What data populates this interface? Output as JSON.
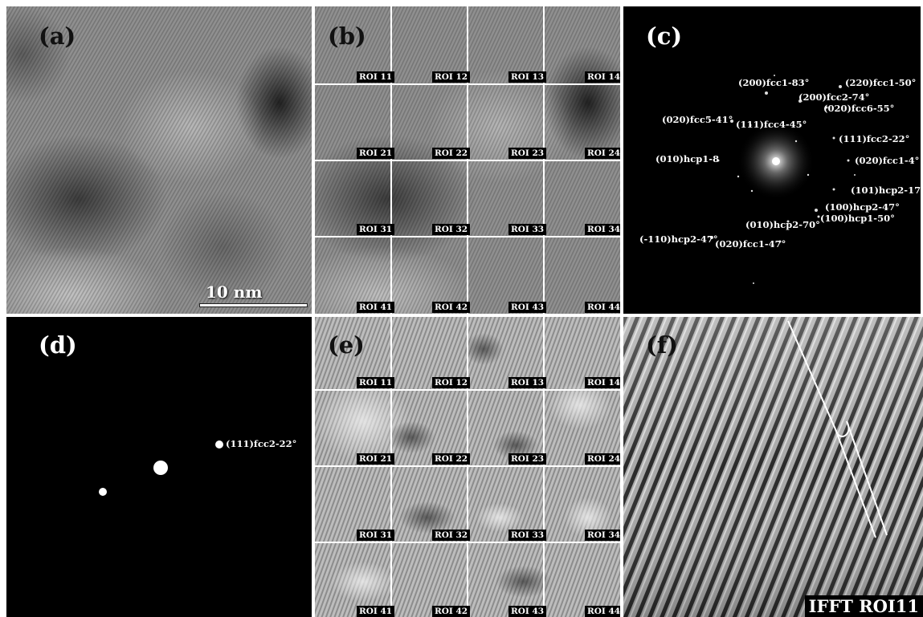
{
  "panels": {
    "a": {
      "label": "(a)",
      "scale_bar": "10 nm"
    },
    "b": {
      "label": "(b)",
      "rois": [
        "ROI 11",
        "ROI 12",
        "ROI 13",
        "ROI 14",
        "ROI 21",
        "ROI 22",
        "ROI 23",
        "ROI 24",
        "ROI 31",
        "ROI 32",
        "ROI 33",
        "ROI 34",
        "ROI 41",
        "ROI 42",
        "ROI 43",
        "ROI 44"
      ]
    },
    "c": {
      "label": "(c)",
      "spots": [
        "(200)fcc1-83°",
        "(220)fcc1-50°",
        "(200)fcc2-74°",
        "(020)fcc6-55°",
        "(020)fcc5-41°",
        "(111)fcc4-45°",
        "(111)fcc2-22°",
        "(010)hcp1-8",
        "(020)fcc1-4°",
        "(101)hcp2-17°",
        "(100)hcp2-47°",
        "(100)hcp1-50°",
        "(010)hcp2-70°",
        "(-110)hcp2-47°",
        "(020)fcc1-47°"
      ]
    },
    "d": {
      "label": "(d)",
      "spot_label": "(111)fcc2-22°"
    },
    "e": {
      "label": "(e)",
      "rois": [
        "ROI 11",
        "ROI 12",
        "ROI 13",
        "ROI 14",
        "ROI 21",
        "ROI 22",
        "ROI 23",
        "ROI 24",
        "ROI 31",
        "ROI 32",
        "ROI 33",
        "ROI 34",
        "ROI 41",
        "ROI 42",
        "ROI 43",
        "ROI 44"
      ]
    },
    "f": {
      "label": "(f)",
      "tag": "IFFT ROI11"
    }
  }
}
